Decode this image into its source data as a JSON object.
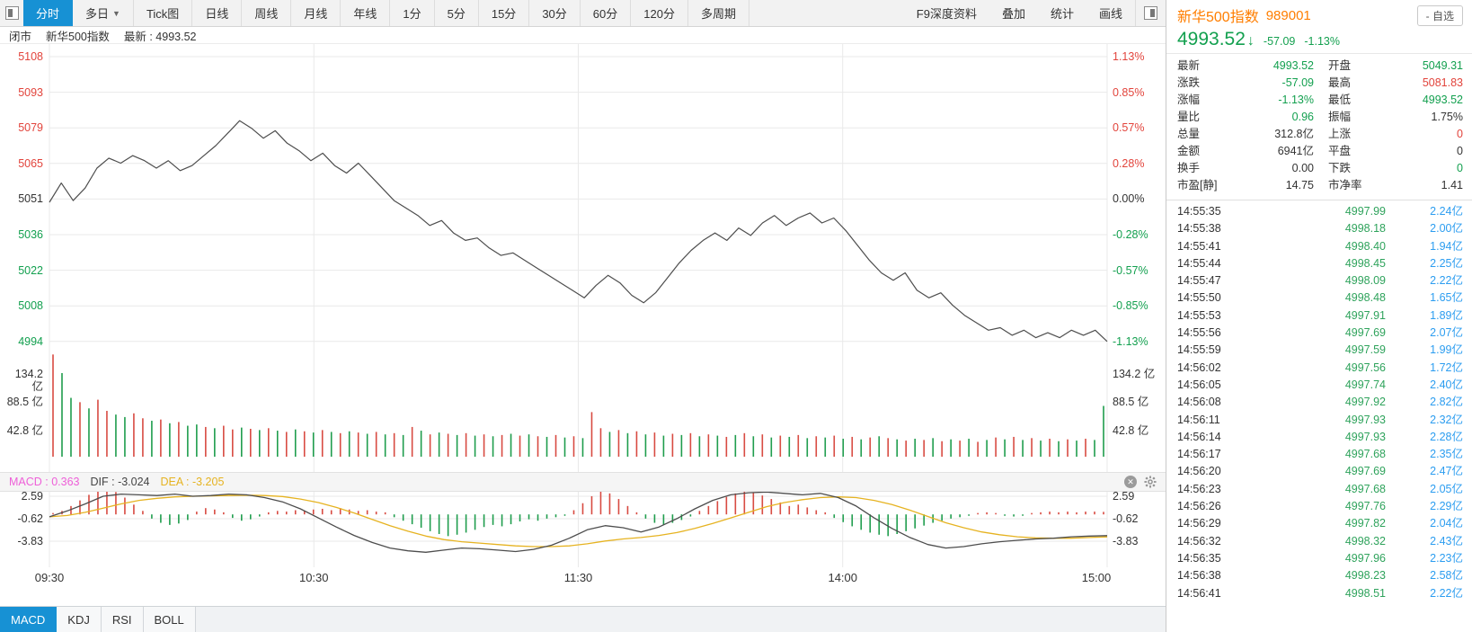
{
  "colors": {
    "accent_blue": "#1791d4",
    "up_red": "#e2443c",
    "down_green": "#13a04f",
    "volume_blue": "#2c9df0",
    "name_orange": "#ff7e00",
    "dif_line": "#4d4d4d",
    "dea_line": "#e6b321",
    "macd_magenta": "#ee5fd8",
    "bar_up": "#d84b42",
    "bar_down": "#1f9d4d",
    "price_line": "#4d4d4d",
    "grid": "#e9e9e9"
  },
  "toolbar": {
    "left_tabs": [
      {
        "label": "分时",
        "active": true
      },
      {
        "label": "多日",
        "dropdown": true
      },
      {
        "label": "Tick图"
      },
      {
        "label": "日线"
      },
      {
        "label": "周线"
      },
      {
        "label": "月线"
      },
      {
        "label": "年线"
      },
      {
        "label": "1分"
      },
      {
        "label": "5分"
      },
      {
        "label": "15分"
      },
      {
        "label": "30分"
      },
      {
        "label": "60分"
      },
      {
        "label": "120分"
      },
      {
        "label": "多周期"
      }
    ],
    "right_items": [
      "F9深度资料",
      "叠加",
      "统计",
      "画线"
    ]
  },
  "status_bar": {
    "market_status": "闭市",
    "instrument": "新华500指数",
    "latest": "最新 : 4993.52"
  },
  "quote_header": {
    "name": "新华500指数",
    "code": "989001",
    "watchlist_button": "- 自选",
    "price": "4993.52",
    "change": "-57.09",
    "change_pct": "-1.13%"
  },
  "stats": [
    [
      {
        "l": "最新",
        "v": "4993.52",
        "c": "down"
      },
      {
        "l": "开盘",
        "v": "5049.31",
        "c": "down"
      }
    ],
    [
      {
        "l": "涨跌",
        "v": "-57.09",
        "c": "down"
      },
      {
        "l": "最高",
        "v": "5081.83",
        "c": "up"
      }
    ],
    [
      {
        "l": "涨幅",
        "v": "-1.13%",
        "c": "down"
      },
      {
        "l": "最低",
        "v": "4993.52",
        "c": "down"
      }
    ],
    [
      {
        "l": "量比",
        "v": "0.96",
        "c": "down"
      },
      {
        "l": "振幅",
        "v": "1.75%",
        "c": "dark"
      }
    ],
    [
      {
        "l": "总量",
        "v": "312.8亿",
        "c": "dark"
      },
      {
        "l": "上涨",
        "v": "0",
        "c": "up"
      }
    ],
    [
      {
        "l": "金额",
        "v": "6941亿",
        "c": "dark"
      },
      {
        "l": "平盘",
        "v": "0",
        "c": "dark"
      }
    ],
    [
      {
        "l": "换手",
        "v": "0.00",
        "c": "dark"
      },
      {
        "l": "下跌",
        "v": "0",
        "c": "down"
      }
    ],
    [
      {
        "l": "市盈[静]",
        "v": "14.75",
        "c": "dark"
      },
      {
        "l": "市净率",
        "v": "1.41",
        "c": "dark"
      }
    ]
  ],
  "tick_list": [
    {
      "t": "14:55:35",
      "p": "4997.99",
      "v": "2.24亿"
    },
    {
      "t": "14:55:38",
      "p": "4998.18",
      "v": "2.00亿"
    },
    {
      "t": "14:55:41",
      "p": "4998.40",
      "v": "1.94亿"
    },
    {
      "t": "14:55:44",
      "p": "4998.45",
      "v": "2.25亿"
    },
    {
      "t": "14:55:47",
      "p": "4998.09",
      "v": "2.22亿"
    },
    {
      "t": "14:55:50",
      "p": "4998.48",
      "v": "1.65亿"
    },
    {
      "t": "14:55:53",
      "p": "4997.91",
      "v": "1.89亿"
    },
    {
      "t": "14:55:56",
      "p": "4997.69",
      "v": "2.07亿"
    },
    {
      "t": "14:55:59",
      "p": "4997.59",
      "v": "1.99亿"
    },
    {
      "t": "14:56:02",
      "p": "4997.56",
      "v": "1.72亿"
    },
    {
      "t": "14:56:05",
      "p": "4997.74",
      "v": "2.40亿"
    },
    {
      "t": "14:56:08",
      "p": "4997.92",
      "v": "2.82亿"
    },
    {
      "t": "14:56:11",
      "p": "4997.93",
      "v": "2.32亿"
    },
    {
      "t": "14:56:14",
      "p": "4997.93",
      "v": "2.28亿"
    },
    {
      "t": "14:56:17",
      "p": "4997.68",
      "v": "2.35亿"
    },
    {
      "t": "14:56:20",
      "p": "4997.69",
      "v": "2.47亿"
    },
    {
      "t": "14:56:23",
      "p": "4997.68",
      "v": "2.05亿"
    },
    {
      "t": "14:56:26",
      "p": "4997.76",
      "v": "2.29亿"
    },
    {
      "t": "14:56:29",
      "p": "4997.82",
      "v": "2.04亿"
    },
    {
      "t": "14:56:32",
      "p": "4998.32",
      "v": "2.43亿"
    },
    {
      "t": "14:56:35",
      "p": "4997.96",
      "v": "2.23亿"
    },
    {
      "t": "14:56:38",
      "p": "4998.23",
      "v": "2.58亿"
    },
    {
      "t": "14:56:41",
      "p": "4998.51",
      "v": "2.22亿"
    }
  ],
  "macd_header": {
    "macd": "MACD : 0.363",
    "dif": "DIF : -3.024",
    "dea": "DEA : -3.205"
  },
  "bottom_tabs": [
    {
      "label": "MACD",
      "active": true
    },
    {
      "label": "KDJ"
    },
    {
      "label": "RSI"
    },
    {
      "label": "BOLL"
    }
  ],
  "chart_data": [
    {
      "type": "line",
      "name": "intraday-price",
      "title": "新华500指数 分时",
      "prev_close": 5050.61,
      "ylim": [
        4993.5,
        5107.7
      ],
      "x_ticks": [
        "09:30",
        "10:30",
        "11:30",
        "14:00",
        "15:00"
      ],
      "y_ticks_left": [
        {
          "label": "5108",
          "color": "up"
        },
        {
          "label": "5093",
          "color": "up"
        },
        {
          "label": "5079",
          "color": "up"
        },
        {
          "label": "5065",
          "color": "up"
        },
        {
          "label": "5051",
          "color": "dark"
        },
        {
          "label": "5036",
          "color": "down"
        },
        {
          "label": "5022",
          "color": "down"
        },
        {
          "label": "5008",
          "color": "down"
        },
        {
          "label": "4994",
          "color": "down"
        }
      ],
      "y_ticks_right": [
        {
          "label": "1.13%",
          "color": "up"
        },
        {
          "label": "0.85%",
          "color": "up"
        },
        {
          "label": "0.57%",
          "color": "up"
        },
        {
          "label": "0.28%",
          "color": "up"
        },
        {
          "label": "0.00%",
          "color": "dark"
        },
        {
          "label": "-0.28%",
          "color": "down"
        },
        {
          "label": "-0.57%",
          "color": "down"
        },
        {
          "label": "-0.85%",
          "color": "down"
        },
        {
          "label": "-1.13%",
          "color": "down"
        }
      ],
      "prices": [
        5049.3,
        5057,
        5050,
        5055,
        5063,
        5067,
        5065,
        5068,
        5066,
        5063,
        5066,
        5062,
        5064,
        5068,
        5072,
        5077,
        5082,
        5079,
        5075,
        5078,
        5073,
        5070,
        5066,
        5069,
        5064,
        5061,
        5065,
        5060,
        5055,
        5050,
        5047,
        5044,
        5040,
        5042,
        5037,
        5034,
        5035,
        5031,
        5028,
        5029,
        5026,
        5023,
        5020,
        5017,
        5014,
        5011,
        5016,
        5020,
        5017,
        5012,
        5009,
        5013,
        5019,
        5025,
        5030,
        5034,
        5037,
        5034,
        5039,
        5036,
        5041,
        5044,
        5040,
        5043,
        5045,
        5041,
        5043,
        5038,
        5032,
        5026,
        5021,
        5018,
        5021,
        5014,
        5011,
        5013,
        5008,
        5004,
        5001,
        4998,
        4999,
        4996,
        4998,
        4995,
        4997,
        4995,
        4998,
        4996,
        4998,
        4993.5
      ]
    },
    {
      "type": "bar",
      "name": "volume",
      "unit": "亿",
      "y_ticks": [
        "134.2 亿",
        "88.5 亿",
        "42.8 亿"
      ],
      "y_tick_values": [
        134.2,
        88.5,
        42.8
      ],
      "values": [
        165,
        -135,
        -95,
        88,
        -78,
        92,
        74,
        -68,
        -64,
        70,
        62,
        -58,
        60,
        -54,
        56,
        -50,
        -52,
        48,
        -46,
        50,
        44,
        -47,
        45,
        -43,
        46,
        -42,
        40,
        -44,
        41,
        -39,
        43,
        -40,
        38,
        -41,
        39,
        -37,
        40,
        -36,
        38,
        -35,
        48,
        -42,
        36,
        -39,
        37,
        -35,
        38,
        -34,
        36,
        -33,
        35,
        -37,
        34,
        -36,
        33,
        -32,
        35,
        -31,
        33,
        -30,
        72,
        46,
        -40,
        43,
        -38,
        41,
        -36,
        39,
        -34,
        37,
        -35,
        38,
        -33,
        36,
        -34,
        32,
        -35,
        38,
        -33,
        36,
        -31,
        34,
        -32,
        35,
        -30,
        33,
        -31,
        34,
        -29,
        32,
        -28,
        31,
        -33,
        30,
        -28,
        26,
        -29,
        27,
        -30,
        25,
        -28,
        26,
        -29,
        24,
        -27,
        31,
        -28,
        32,
        -27,
        30,
        -26,
        29,
        -25,
        28,
        -26,
        29,
        -27,
        -82
      ]
    },
    {
      "type": "line+bar",
      "name": "macd",
      "y_ticks": [
        "2.59",
        "-0.62",
        "-3.83"
      ],
      "y_tick_values": [
        2.59,
        -0.62,
        -3.83
      ],
      "dif": [
        -0.35,
        0.5,
        1.5,
        2.6,
        2.9,
        2.8,
        2.7,
        2.9,
        2.6,
        2.7,
        2.9,
        2.8,
        2.4,
        1.8,
        0.8,
        -0.5,
        -1.8,
        -3.0,
        -4.0,
        -4.8,
        -5.2,
        -5.4,
        -5.1,
        -4.8,
        -4.9,
        -5.1,
        -5.3,
        -5.0,
        -4.4,
        -3.4,
        -2.2,
        -1.6,
        -1.9,
        -2.5,
        -1.8,
        -0.6,
        0.8,
        2.0,
        2.8,
        3.1,
        3.2,
        3.0,
        2.8,
        3.0,
        2.4,
        1.2,
        -0.5,
        -2.0,
        -3.3,
        -4.3,
        -4.8,
        -4.6,
        -4.2,
        -3.9,
        -3.7,
        -3.5,
        -3.4,
        -3.2,
        -3.1,
        -3.024
      ],
      "dea": [
        -0.35,
        -0.15,
        0.3,
        0.9,
        1.5,
        2.0,
        2.3,
        2.5,
        2.6,
        2.65,
        2.7,
        2.75,
        2.7,
        2.55,
        2.2,
        1.7,
        1.0,
        0.2,
        -0.7,
        -1.6,
        -2.4,
        -3.1,
        -3.6,
        -3.9,
        -4.1,
        -4.3,
        -4.5,
        -4.6,
        -4.6,
        -4.5,
        -4.2,
        -3.8,
        -3.5,
        -3.3,
        -3.0,
        -2.6,
        -2.0,
        -1.3,
        -0.5,
        0.3,
        1.1,
        1.7,
        2.1,
        2.4,
        2.5,
        2.4,
        2.0,
        1.4,
        0.6,
        -0.3,
        -1.2,
        -1.9,
        -2.5,
        -2.9,
        -3.2,
        -3.35,
        -3.4,
        -3.4,
        -3.3,
        -3.205
      ],
      "hist": [
        0.2,
        0.5,
        1.2,
        2.0,
        2.8,
        3.4,
        3.6,
        3.2,
        2.4,
        1.4,
        0.5,
        -0.6,
        -1.2,
        -1.5,
        -1.3,
        -0.8,
        0.4,
        0.9,
        0.7,
        0.3,
        -0.5,
        -0.9,
        -0.7,
        -0.3,
        0.3,
        0.5,
        0.4,
        0.6,
        0.5,
        0.7,
        0.8,
        0.6,
        0.9,
        0.7,
        0.5,
        0.6,
        0.4,
        0.3,
        -0.4,
        -0.9,
        -1.4,
        -1.9,
        -2.4,
        -2.8,
        -3.1,
        -2.9,
        -2.6,
        -2.2,
        -1.8,
        -1.5,
        -1.7,
        -1.4,
        -1.0,
        -0.7,
        -0.9,
        -0.6,
        -0.4,
        -0.2,
        0.6,
        1.6,
        2.6,
        3.4,
        3.0,
        2.2,
        1.2,
        0.3,
        -0.6,
        -1.2,
        -1.5,
        -1.2,
        -0.8,
        -0.3,
        0.5,
        1.2,
        1.9,
        2.5,
        3.0,
        3.3,
        3.1,
        2.7,
        2.2,
        1.7,
        1.2,
        1.4,
        1.0,
        0.6,
        0.3,
        -0.5,
        -1.1,
        -1.7,
        -2.2,
        -2.6,
        -2.9,
        -3.1,
        -2.8,
        -2.4,
        -2.0,
        -1.6,
        -1.2,
        -0.9,
        -0.6,
        -0.4,
        -0.2,
        0.2,
        0.3,
        0.2,
        -0.2,
        -0.3,
        -0.2,
        0.2,
        0.3,
        0.4,
        0.3,
        0.4,
        0.3,
        0.4,
        0.4,
        0.363
      ]
    }
  ]
}
